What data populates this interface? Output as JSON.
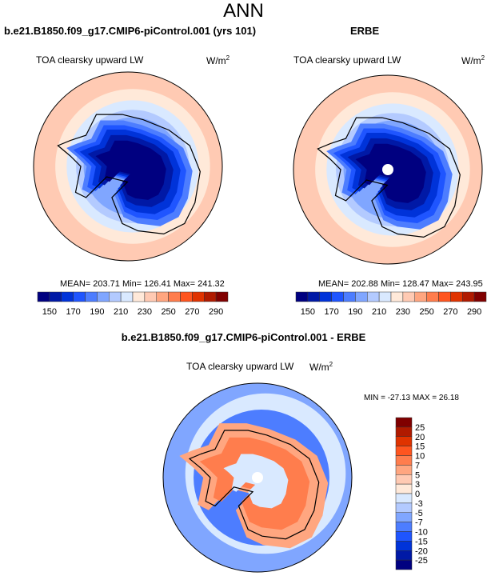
{
  "title": "ANN",
  "panels": [
    {
      "title": "b.e21.B1850.f09_g17.CMIP6-piControl.001 (yrs 101)",
      "variable": "TOA clearsky upward LW",
      "units": "W/m",
      "units_sup": "2",
      "stats": "MEAN= 203.71  Min= 126.41  Max= 241.32"
    },
    {
      "title": "ERBE",
      "variable": "TOA clearsky upward LW",
      "units": "W/m",
      "units_sup": "2",
      "stats": "MEAN= 202.88  Min= 128.47  Max= 243.95"
    },
    {
      "title": "b.e21.B1850.f09_g17.CMIP6-piControl.001 - ERBE",
      "variable": "TOA clearsky upward LW",
      "units": "W/m",
      "units_sup": "2",
      "stats": "MIN = -27.13 MAX =  26.18"
    }
  ],
  "abs_colorbar": {
    "labels": [
      "150",
      "170",
      "190",
      "210",
      "230",
      "250",
      "270",
      "290"
    ],
    "colors": [
      "#000080",
      "#0019a6",
      "#0033d9",
      "#1f55ff",
      "#4d7dff",
      "#80a6ff",
      "#b3caff",
      "#d9e9ff",
      "#ffe9d9",
      "#ffcab3",
      "#ffa680",
      "#ff7d4d",
      "#ff551f",
      "#e03300",
      "#b01a00",
      "#800000"
    ]
  },
  "diff_colorbar": {
    "labels": [
      "25",
      "20",
      "15",
      "10",
      "7",
      "5",
      "3",
      "0",
      "-3",
      "-5",
      "-7",
      "-10",
      "-15",
      "-20",
      "-25"
    ],
    "colors": [
      "#800000",
      "#b01a00",
      "#e03300",
      "#ff551f",
      "#ff7d4d",
      "#ffa680",
      "#ffcab3",
      "#ffe9d9",
      "#d9e9ff",
      "#b3caff",
      "#80a6ff",
      "#4d7dff",
      "#1f55ff",
      "#0033d9",
      "#0019a6",
      "#000080"
    ]
  }
}
